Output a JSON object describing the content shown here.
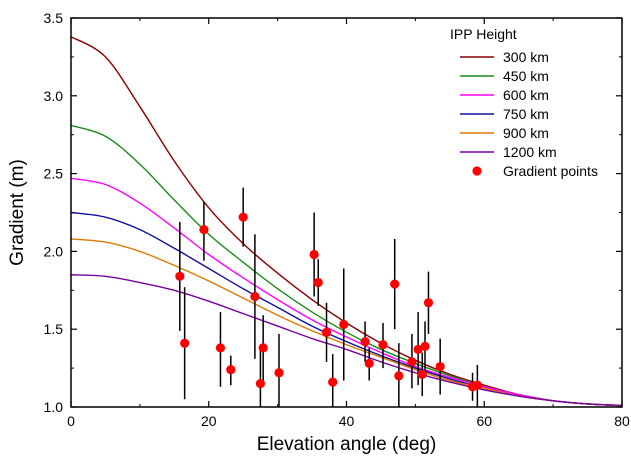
{
  "chart_data": {
    "type": "line",
    "xlabel": "Elevation angle (deg)",
    "ylabel": "Gradient (m)",
    "xlim": [
      0,
      80
    ],
    "ylim": [
      1.0,
      3.5
    ],
    "x_ticks": [
      0,
      20,
      40,
      60,
      80
    ],
    "x_tick_labels": [
      "0",
      "20",
      "40",
      "60",
      "80"
    ],
    "y_ticks": [
      1.0,
      1.5,
      2.0,
      2.5,
      3.0,
      3.5
    ],
    "y_tick_labels": [
      "1.0",
      "1.5",
      "2.0",
      "2.5",
      "3.0",
      "3.5"
    ],
    "grid": false,
    "legend": {
      "title": "IPP Height",
      "placement": "top-right"
    },
    "x": [
      0,
      5,
      10,
      15,
      20,
      25,
      30,
      35,
      40,
      45,
      50,
      55,
      60,
      65,
      70,
      75,
      80
    ],
    "series": [
      {
        "name": "300 km",
        "color": "#8b0000",
        "values": [
          3.38,
          3.25,
          2.93,
          2.58,
          2.28,
          2.05,
          1.86,
          1.69,
          1.54,
          1.41,
          1.3,
          1.21,
          1.14,
          1.08,
          1.04,
          1.02,
          1.01
        ]
      },
      {
        "name": "450 km",
        "color": "#1a8c1a",
        "values": [
          2.81,
          2.74,
          2.56,
          2.33,
          2.11,
          1.93,
          1.76,
          1.61,
          1.48,
          1.37,
          1.28,
          1.2,
          1.13,
          1.08,
          1.04,
          1.02,
          1.01
        ]
      },
      {
        "name": "600 km",
        "color": "#ff00ff",
        "values": [
          2.47,
          2.43,
          2.31,
          2.15,
          1.98,
          1.83,
          1.69,
          1.56,
          1.45,
          1.35,
          1.26,
          1.19,
          1.13,
          1.08,
          1.04,
          1.02,
          1.01
        ]
      },
      {
        "name": "750 km",
        "color": "#1010a0",
        "values": [
          2.25,
          2.22,
          2.14,
          2.02,
          1.89,
          1.76,
          1.64,
          1.52,
          1.42,
          1.33,
          1.25,
          1.18,
          1.12,
          1.07,
          1.04,
          1.02,
          1.01
        ]
      },
      {
        "name": "900 km",
        "color": "#e07800",
        "values": [
          2.08,
          2.06,
          2.0,
          1.91,
          1.81,
          1.7,
          1.59,
          1.49,
          1.4,
          1.32,
          1.24,
          1.17,
          1.12,
          1.07,
          1.04,
          1.02,
          1.01
        ]
      },
      {
        "name": "1200 km",
        "color": "#7a00a0",
        "values": [
          1.85,
          1.84,
          1.8,
          1.75,
          1.68,
          1.6,
          1.52,
          1.44,
          1.37,
          1.29,
          1.22,
          1.16,
          1.11,
          1.07,
          1.04,
          1.02,
          1.01
        ]
      }
    ],
    "scatter": {
      "name": "Gradient points",
      "color": "#ff0000",
      "points": [
        {
          "x": 15.8,
          "y": 1.84,
          "err_low": 1.49,
          "err_high": 2.19
        },
        {
          "x": 16.5,
          "y": 1.41,
          "err_low": 1.05,
          "err_high": 1.77
        },
        {
          "x": 19.3,
          "y": 2.14,
          "err_low": 1.94,
          "err_high": 2.32
        },
        {
          "x": 21.7,
          "y": 1.38,
          "err_low": 1.13,
          "err_high": 1.61
        },
        {
          "x": 23.2,
          "y": 1.24,
          "err_low": 1.14,
          "err_high": 1.33
        },
        {
          "x": 25.0,
          "y": 2.22,
          "err_low": 2.03,
          "err_high": 2.41
        },
        {
          "x": 26.7,
          "y": 1.71,
          "err_low": 1.31,
          "err_high": 2.11
        },
        {
          "x": 27.5,
          "y": 1.15,
          "err_low": 0.95,
          "err_high": 1.4
        },
        {
          "x": 27.9,
          "y": 1.38,
          "err_low": 1.17,
          "err_high": 1.59
        },
        {
          "x": 30.2,
          "y": 1.22,
          "err_low": 0.98,
          "err_high": 1.47
        },
        {
          "x": 35.3,
          "y": 1.98,
          "err_low": 1.71,
          "err_high": 2.25
        },
        {
          "x": 35.9,
          "y": 1.8,
          "err_low": 1.65,
          "err_high": 1.95
        },
        {
          "x": 37.1,
          "y": 1.48,
          "err_low": 1.29,
          "err_high": 1.67
        },
        {
          "x": 38.0,
          "y": 1.16,
          "err_low": 0.99,
          "err_high": 1.34
        },
        {
          "x": 39.6,
          "y": 1.53,
          "err_low": 1.17,
          "err_high": 1.89
        },
        {
          "x": 42.7,
          "y": 1.42,
          "err_low": 1.29,
          "err_high": 1.55
        },
        {
          "x": 43.3,
          "y": 1.28,
          "err_low": 1.17,
          "err_high": 1.38
        },
        {
          "x": 45.3,
          "y": 1.4,
          "err_low": 1.25,
          "err_high": 1.54
        },
        {
          "x": 47.0,
          "y": 1.79,
          "err_low": 1.5,
          "err_high": 2.08
        },
        {
          "x": 47.6,
          "y": 1.2,
          "err_low": 0.99,
          "err_high": 1.41
        },
        {
          "x": 49.5,
          "y": 1.29,
          "err_low": 1.12,
          "err_high": 1.47
        },
        {
          "x": 50.4,
          "y": 1.37,
          "err_low": 1.14,
          "err_high": 1.61
        },
        {
          "x": 51.0,
          "y": 1.21,
          "err_low": 1.07,
          "err_high": 1.35
        },
        {
          "x": 51.4,
          "y": 1.39,
          "err_low": 1.23,
          "err_high": 1.55
        },
        {
          "x": 51.9,
          "y": 1.67,
          "err_low": 1.47,
          "err_high": 1.87
        },
        {
          "x": 53.6,
          "y": 1.26,
          "err_low": 1.08,
          "err_high": 1.44
        },
        {
          "x": 58.3,
          "y": 1.13,
          "err_low": 1.04,
          "err_high": 1.22
        },
        {
          "x": 59.0,
          "y": 1.14,
          "err_low": 1.0,
          "err_high": 1.27
        }
      ]
    }
  }
}
